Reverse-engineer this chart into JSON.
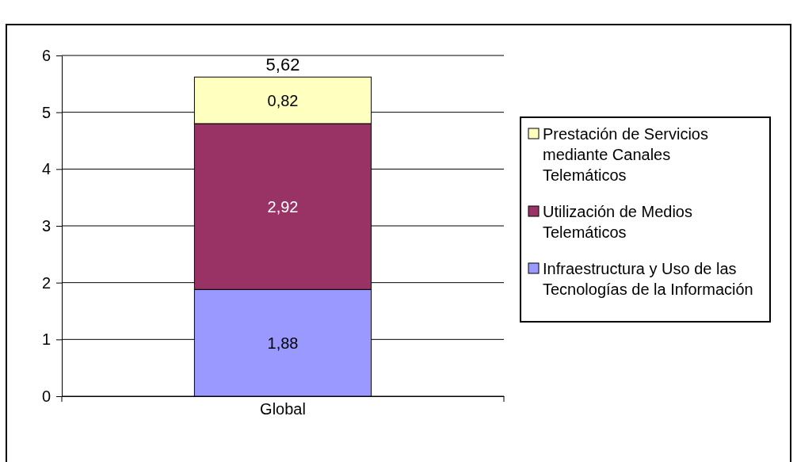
{
  "chart_data": {
    "type": "bar",
    "stacked": true,
    "categories": [
      "Global"
    ],
    "series": [
      {
        "name": "Infraestructura y Uso de las Tecnologías de la Información",
        "color": "#9999ff",
        "values": [
          1.88
        ],
        "value_labels": [
          "1,88"
        ]
      },
      {
        "name": "Utilización de Medios Telemáticos",
        "color": "#993366",
        "values": [
          2.92
        ],
        "value_labels": [
          "2,92"
        ]
      },
      {
        "name": "Prestación de Servicios mediante Canales Telemáticos",
        "color": "#ffffc0",
        "values": [
          0.82
        ],
        "value_labels": [
          "0,82"
        ]
      }
    ],
    "totals": [
      "5,62"
    ],
    "ylim": [
      0,
      6
    ],
    "yticks": [
      0,
      1,
      2,
      3,
      4,
      5,
      6
    ],
    "grid": "y",
    "legend": "right"
  }
}
